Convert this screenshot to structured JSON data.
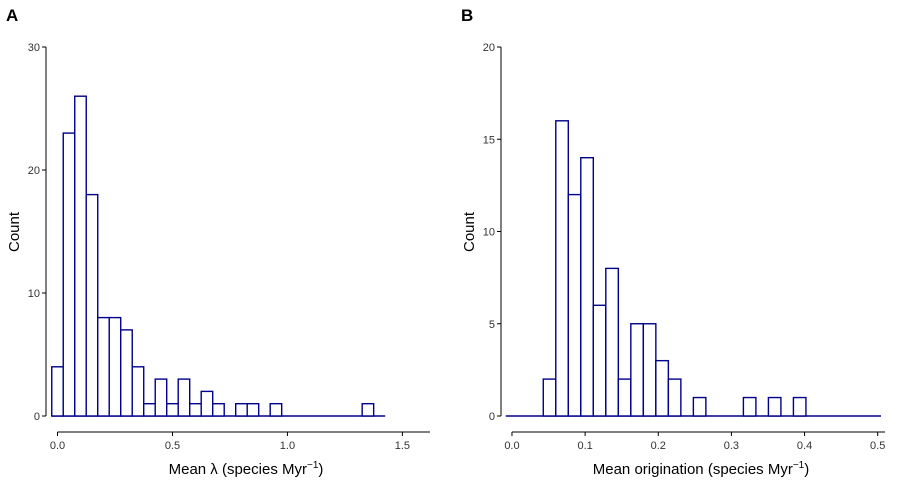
{
  "chart_data": [
    {
      "type": "bar",
      "panel": "A",
      "ylabel": "Count",
      "xlabel_parts": [
        "Mean λ (species Myr",
        "−1",
        ")"
      ],
      "ylim": [
        0,
        30
      ],
      "yticks": [
        0,
        10,
        20,
        30
      ],
      "xlim": [
        -0.05,
        1.62
      ],
      "xticks": [
        0.0,
        0.5,
        1.0,
        1.5
      ],
      "xtick_labels": [
        "0.0",
        "0.5",
        "1.0",
        "1.5"
      ],
      "bin_start": -0.025,
      "bin_width": 0.05,
      "values": [
        4,
        23,
        26,
        18,
        8,
        8,
        7,
        4,
        1,
        3,
        1,
        3,
        1,
        2,
        1,
        0,
        1,
        1,
        0,
        1,
        0,
        0,
        0,
        0,
        0,
        0,
        0,
        1,
        0
      ],
      "color": "#00008b"
    },
    {
      "type": "bar",
      "panel": "B",
      "ylabel": "Count",
      "xlabel_parts": [
        "Mean origination (species Myr",
        "−1",
        ")"
      ],
      "ylim": [
        0,
        20
      ],
      "yticks": [
        0,
        5,
        10,
        15,
        20
      ],
      "xlim": [
        -0.015,
        0.51
      ],
      "xticks": [
        0.0,
        0.1,
        0.2,
        0.3,
        0.4,
        0.5
      ],
      "xtick_labels": [
        "0.0",
        "0.1",
        "0.2",
        "0.3",
        "0.4",
        "0.5"
      ],
      "bin_start": -0.0085,
      "bin_width": 0.0171,
      "values": [
        0,
        0,
        0,
        2,
        16,
        12,
        14,
        6,
        8,
        2,
        5,
        5,
        3,
        2,
        0,
        1,
        0,
        0,
        0,
        1,
        0,
        1,
        0,
        1,
        0,
        0,
        0,
        0,
        0,
        0
      ],
      "color": "#00008b"
    }
  ]
}
